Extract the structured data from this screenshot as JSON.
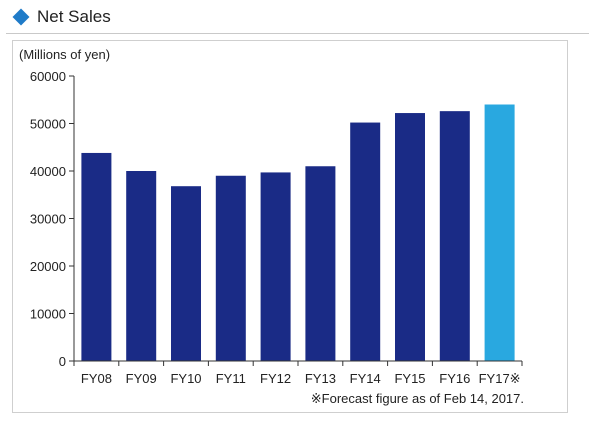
{
  "header": {
    "title": "Net Sales",
    "icon": "diamond-icon",
    "icon_color": "#1f7bc8"
  },
  "chart_data": {
    "type": "bar",
    "ylabel": "(Millions of yen)",
    "categories": [
      "FY08",
      "FY09",
      "FY10",
      "FY11",
      "FY12",
      "FY13",
      "FY14",
      "FY15",
      "FY16",
      "FY17※"
    ],
    "values": [
      43800,
      40000,
      36800,
      39000,
      39700,
      41000,
      50200,
      52200,
      52600,
      54000
    ],
    "colors": [
      "#1a2b86",
      "#1a2b86",
      "#1a2b86",
      "#1a2b86",
      "#1a2b86",
      "#1a2b86",
      "#1a2b86",
      "#1a2b86",
      "#1a2b86",
      "#29a8e0"
    ],
    "ylim": [
      0,
      60000
    ],
    "yticks": [
      "0",
      "10000",
      "20000",
      "30000",
      "40000",
      "50000",
      "60000"
    ],
    "grid": false,
    "footnote": "※Forecast figure as of Feb 14, 2017."
  }
}
